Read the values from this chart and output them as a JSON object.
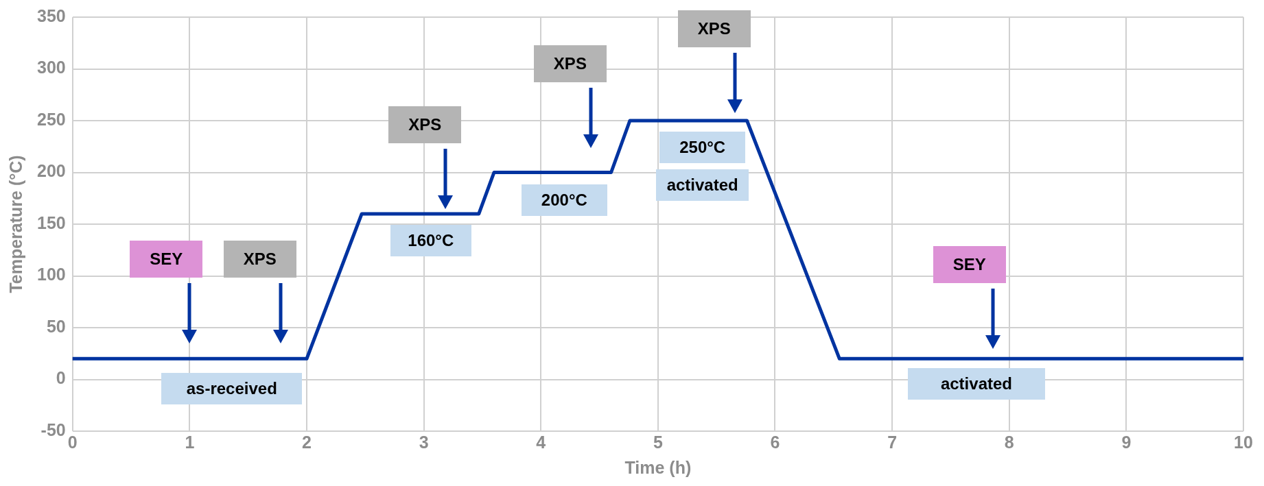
{
  "chart_data": {
    "type": "line",
    "xlabel": "Time (h)",
    "ylabel": "Temperature (°C)",
    "x": [
      0,
      2,
      2.47,
      3.47,
      3.6,
      4.6,
      4.76,
      5.76,
      6.55,
      10
    ],
    "series": [
      {
        "color": "#0033a0",
        "values": [
          20,
          20,
          160,
          160,
          200,
          200,
          250,
          250,
          20,
          20
        ]
      }
    ],
    "xlim": [
      0,
      10
    ],
    "xticks": [
      0,
      1,
      2,
      3,
      4,
      5,
      6,
      7,
      8,
      9,
      10
    ],
    "ylim": [
      -50,
      350
    ],
    "yticks": [
      -50,
      0,
      50,
      100,
      150,
      200,
      250,
      300,
      350
    ],
    "grid": true,
    "legend": false,
    "marker": "none",
    "line_style": "solid",
    "annotations": [
      "SEY",
      "XPS",
      "as-received",
      "XPS",
      "160°C",
      "XPS",
      "200°C",
      "XPS",
      "250°C",
      "activated",
      "SEY",
      "activated"
    ]
  }
}
